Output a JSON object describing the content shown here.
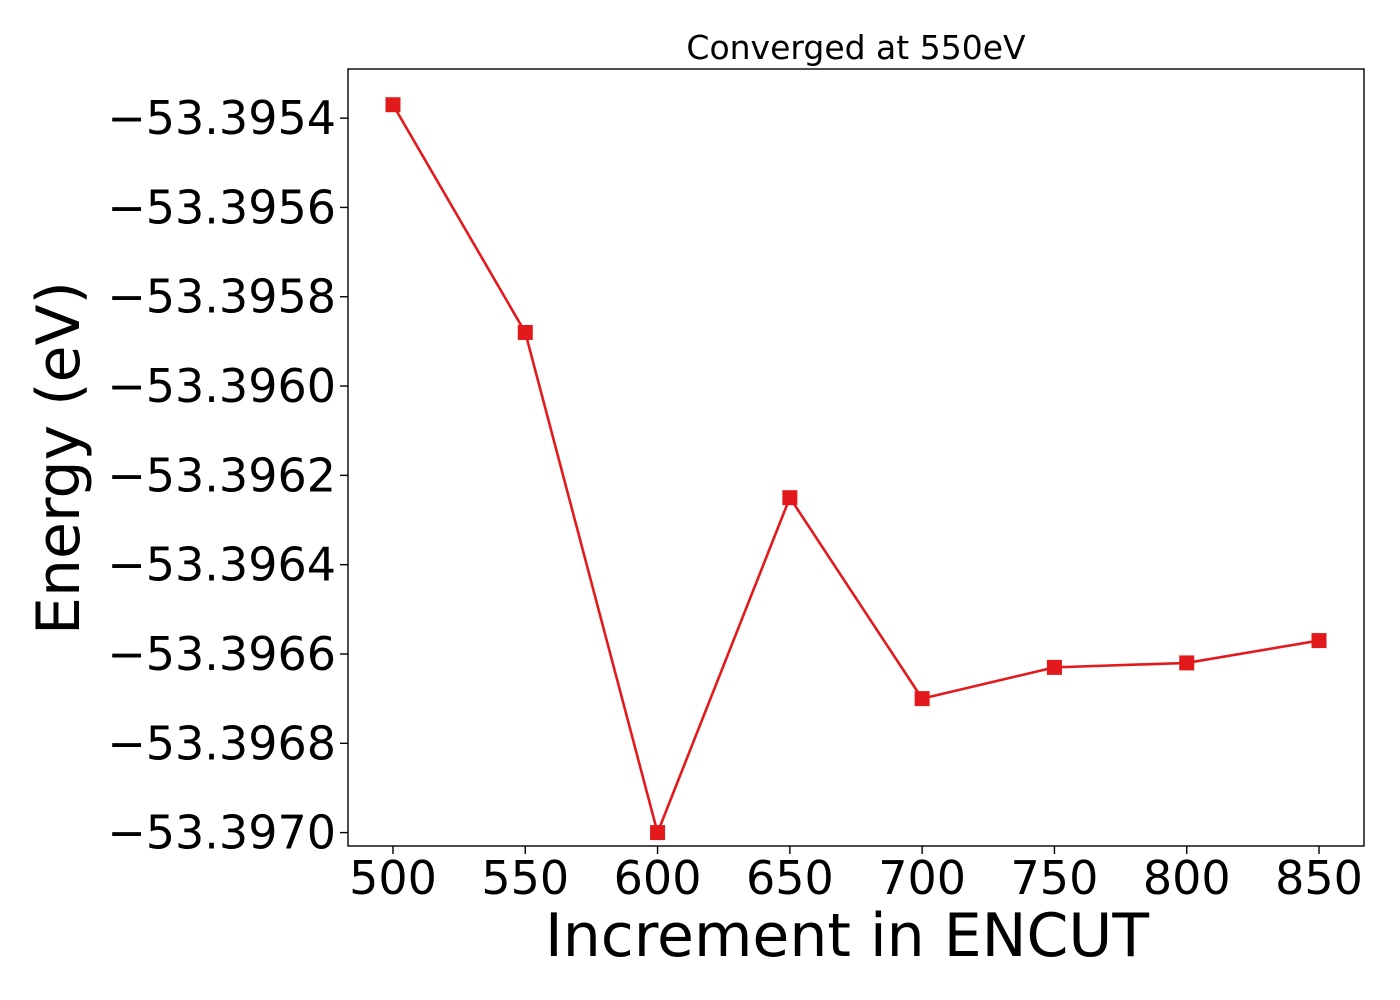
{
  "chart_data": {
    "type": "line",
    "title": "Converged at 550eV",
    "xlabel": "Increment in ENCUT",
    "ylabel": "Energy (eV)",
    "x": [
      500,
      550,
      600,
      650,
      700,
      750,
      800,
      850
    ],
    "series": [
      {
        "values": [
          -53.39537,
          -53.39588,
          -53.397,
          -53.39625,
          -53.3967,
          -53.39663,
          -53.39662,
          -53.39657
        ],
        "color": "#e31a1c",
        "marker": "square"
      }
    ],
    "xticks": [
      500,
      550,
      600,
      650,
      700,
      750,
      800,
      850
    ],
    "xtick_labels": [
      "500",
      "550",
      "600",
      "650",
      "700",
      "750",
      "800",
      "850"
    ],
    "yticks": [
      -53.3954,
      -53.3956,
      -53.3958,
      -53.396,
      -53.3962,
      -53.3964,
      -53.3966,
      -53.3968,
      -53.397
    ],
    "ytick_labels": [
      "−53.3954",
      "−53.3956",
      "−53.3958",
      "−53.3960",
      "−53.3962",
      "−53.3964",
      "−53.3966",
      "−53.3968",
      "−53.3970"
    ],
    "xlim": [
      483,
      867
    ],
    "ylim": [
      -53.39703,
      -53.39529
    ],
    "grid": false,
    "legend": false
  }
}
